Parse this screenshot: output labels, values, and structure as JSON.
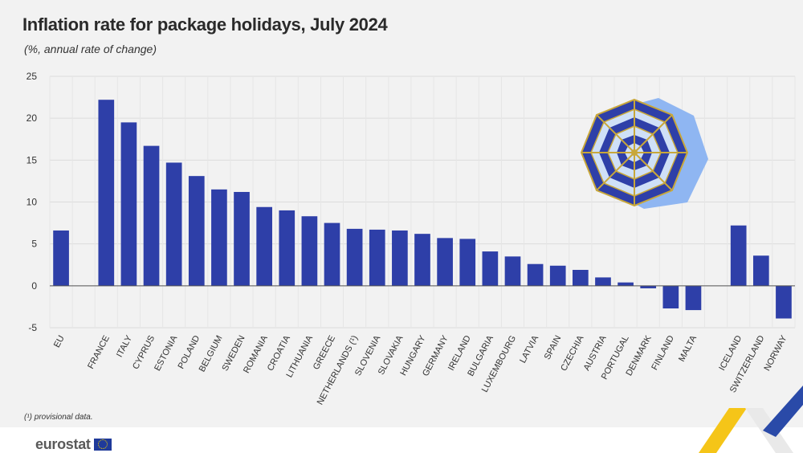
{
  "title": "Inflation rate for package holidays, July 2024",
  "subtitle": "(%, annual rate of change)",
  "footnote": {
    "mark": "(¹)",
    "text": " provisional data."
  },
  "brand": {
    "name": "eurostat"
  },
  "colors": {
    "bar": "#2e3fa8",
    "grid": "#dcdcdc",
    "panel": "#f2f2f2",
    "accent_yellow": "#f5c518",
    "accent_blue": "#2a4aa8"
  },
  "chart_data": {
    "type": "bar",
    "categories": [
      "EU",
      "FRANCE",
      "ITALY",
      "CYPRUS",
      "ESTONIA",
      "POLAND",
      "BELGIUM",
      "SWEDEN",
      "ROMANIA",
      "CROATIA",
      "LITHUANIA",
      "GREECE",
      "NETHERLANDS (¹)",
      "SLOVENIA",
      "SLOVAKIA",
      "HUNGARY",
      "GERMANY",
      "IRELAND",
      "BULGARIA",
      "LUXEMBOURG",
      "LATVIA",
      "SPAIN",
      "CZECHIA",
      "AUSTRIA",
      "PORTUGAL",
      "DENMARK",
      "FINLAND",
      "MALTA",
      "ICELAND",
      "SWITZERLAND",
      "NORWAY"
    ],
    "values": [
      6.6,
      22.2,
      19.5,
      16.7,
      14.7,
      13.1,
      11.5,
      11.2,
      9.4,
      9.0,
      8.3,
      7.5,
      6.8,
      6.7,
      6.6,
      6.2,
      5.7,
      5.6,
      4.1,
      3.5,
      2.6,
      2.4,
      1.9,
      1.0,
      0.4,
      -0.3,
      -2.7,
      -2.9,
      7.2,
      3.6,
      -3.9
    ],
    "groups": [
      1,
      27,
      3
    ],
    "xlabel": "",
    "ylabel": "",
    "ylim": [
      -5,
      25
    ],
    "yticks": [
      -5,
      0,
      5,
      10,
      15,
      20,
      25
    ],
    "grid": true,
    "legend": "none"
  }
}
